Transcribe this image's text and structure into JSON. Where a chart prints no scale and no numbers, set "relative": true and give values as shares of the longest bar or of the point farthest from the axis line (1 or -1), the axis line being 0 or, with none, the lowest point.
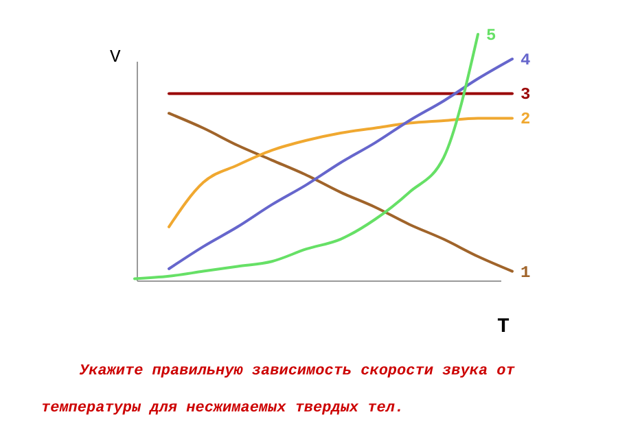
{
  "chart_data": {
    "type": "line",
    "relative": true,
    "xlabel": "T",
    "ylabel": "V",
    "categories": [
      null,
      null,
      null,
      null,
      null,
      null,
      null,
      null,
      null,
      null,
      null,
      null
    ],
    "series": [
      {
        "name": "1",
        "color": "#a0642a",
        "values": [
          null,
          0.68,
          0.62,
          0.55,
          0.49,
          0.43,
          0.36,
          0.3,
          0.23,
          0.17,
          0.1,
          0.04
        ]
      },
      {
        "name": "2",
        "color": "#f0a830",
        "values": [
          null,
          0.22,
          0.4,
          0.47,
          0.53,
          0.57,
          0.6,
          0.62,
          0.64,
          0.65,
          0.66,
          0.66
        ]
      },
      {
        "name": "3",
        "color": "#990000",
        "values": [
          null,
          0.76,
          0.76,
          0.76,
          0.76,
          0.76,
          0.76,
          0.76,
          0.76,
          0.76,
          0.76,
          0.76
        ]
      },
      {
        "name": "4",
        "color": "#6666cc",
        "values": [
          null,
          0.05,
          0.14,
          0.22,
          0.31,
          0.39,
          0.48,
          0.56,
          0.65,
          0.73,
          0.82,
          0.9
        ]
      },
      {
        "name": "5",
        "color": "#66e066",
        "values": [
          0.01,
          0.02,
          0.04,
          0.06,
          0.08,
          0.13,
          0.17,
          0.25,
          0.36,
          0.5,
          1.0,
          null
        ]
      }
    ],
    "annotations": [
      "Укажите правильную зависимость скорости звука от",
      "температуры для несжимаемых твердых тел."
    ]
  }
}
